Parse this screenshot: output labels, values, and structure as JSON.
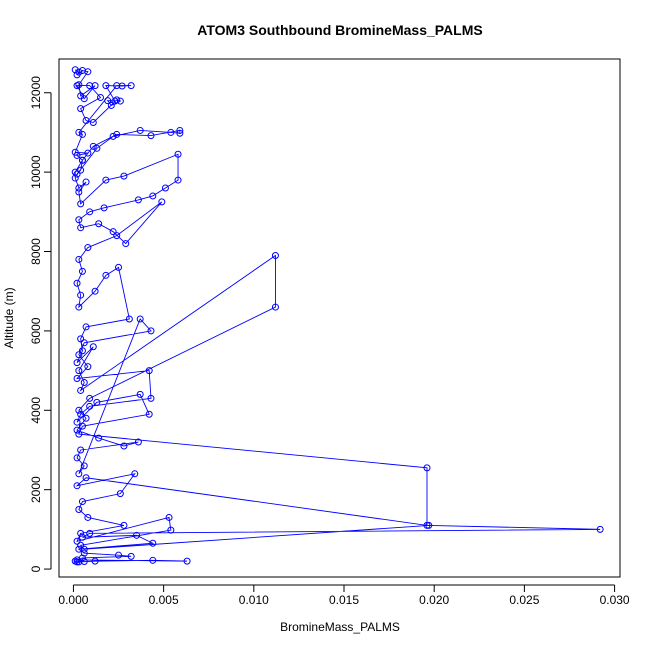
{
  "chart_data": {
    "type": "line",
    "title": "ATOM3 Southbound BromineMass_PALMS",
    "xlabel": "BromineMass_PALMS",
    "ylabel": "Altitude (m)",
    "xlim": [
      -0.0008,
      0.0303
    ],
    "ylim": [
      -200,
      12850
    ],
    "x_ticks": [
      0,
      0.005,
      0.01,
      0.015,
      0.02,
      0.025,
      0.03
    ],
    "x_tick_labels": [
      "0.000",
      "0.005",
      "0.010",
      "0.015",
      "0.020",
      "0.025",
      "0.030"
    ],
    "y_ticks": [
      0,
      2000,
      4000,
      6000,
      8000,
      10000,
      12000
    ],
    "y_tick_labels": [
      "0",
      "2000",
      "4000",
      "6000",
      "8000",
      "10000",
      "12000"
    ],
    "grid": false,
    "legend": "none",
    "series_color": "#0000ff",
    "marker": "open-circle",
    "series": [
      {
        "x": [
          0.0001,
          0.0003,
          0.0002,
          0.0005,
          0.0008,
          0.0003,
          0.0004,
          0.0012,
          0.0006,
          0.0002,
          0.0009,
          0.0015,
          0.0004,
          0.0007,
          0.0011,
          0.0024,
          0.0026,
          0.0021,
          0.0019,
          0.0023,
          0.0018,
          0.0027,
          0.0032,
          0.0024,
          0.0003,
          0.0005,
          0.0001,
          0.0008,
          0.0002,
          0.0005,
          0.0004,
          0.0002,
          0.0013,
          0.0022,
          0.0037,
          0.0054,
          0.0059,
          0.0059,
          0.0043,
          0.0024,
          0.0011,
          0.0005,
          0.0001,
          0.0001,
          0.0003,
          0.0007,
          0.0003,
          0.0004,
          0.0018,
          0.0028,
          0.0058,
          0.0058,
          0.0051,
          0.0044,
          0.0036,
          0.0017,
          0.0009,
          0.0003,
          0.0004,
          0.0014,
          0.0022,
          0.0029,
          0.0049,
          0.0024,
          0.0008,
          0.0003,
          0.0005,
          0.0002,
          0.0004,
          0.0003,
          0.0012,
          0.0018,
          0.0025,
          0.0031,
          0.0007,
          0.0004,
          0.0005,
          0.0002,
          0.0011,
          0.0003,
          0.0006,
          0.0004,
          0.0112,
          0.0112,
          0.0009,
          0.0003,
          0.0007,
          0.0002,
          0.0014,
          0.0028,
          0.0036,
          0.0004,
          0.0002,
          0.0006,
          0.0003,
          0.0037,
          0.0043,
          0.0006,
          0.0003,
          0.0008,
          0.0002,
          0.0042,
          0.0043,
          0.0009,
          0.0004,
          0.0002,
          0.0013,
          0.0037,
          0.0042,
          0.0005,
          0.0003,
          0.0196,
          0.0196,
          0.0007,
          0.0002,
          0.0034,
          0.0026,
          0.0005,
          0.0003,
          0.0008,
          0.0028,
          0.0004,
          0.0002,
          0.0053,
          0.0054,
          0.0004,
          0.0006,
          0.0197,
          0.0292,
          0.0009,
          0.0005,
          0.0035,
          0.0044,
          0.0003,
          0.0006,
          0.0025,
          0.0032,
          0.0005,
          0.0002,
          0.0063,
          0.0044,
          0.0012,
          0.0003,
          0.0006,
          0.0001,
          0.0002
        ],
        "y": [
          12580,
          12520,
          12450,
          12560,
          12530,
          12200,
          11920,
          12180,
          11850,
          12180,
          12180,
          11880,
          11600,
          11300,
          11250,
          11820,
          11790,
          11680,
          11800,
          11790,
          12180,
          12170,
          12180,
          12180,
          11000,
          10950,
          10500,
          10480,
          10420,
          10300,
          10050,
          9950,
          10600,
          10900,
          11050,
          11000,
          10980,
          11050,
          10920,
          10950,
          10650,
          10300,
          10000,
          9850,
          9600,
          9750,
          9500,
          9200,
          9800,
          9900,
          10450,
          9800,
          9600,
          9400,
          9300,
          9100,
          9000,
          8800,
          8600,
          8700,
          8500,
          8200,
          9250,
          8400,
          8100,
          7800,
          7500,
          7200,
          6900,
          6600,
          7000,
          7400,
          7600,
          6300,
          6100,
          5800,
          5500,
          5200,
          5600,
          5000,
          4700,
          4500,
          7900,
          6600,
          4300,
          4000,
          3800,
          3500,
          3300,
          3100,
          3200,
          3000,
          2800,
          2600,
          2400,
          6300,
          6000,
          5700,
          5400,
          5100,
          4800,
          5000,
          4300,
          4100,
          3900,
          3700,
          4200,
          4400,
          3900,
          3600,
          3400,
          2550,
          1100,
          2300,
          2100,
          2400,
          1900,
          1700,
          1500,
          1300,
          1100,
          900,
          700,
          1300,
          980,
          600,
          500,
          1100,
          1000,
          900,
          800,
          850,
          650,
          500,
          400,
          350,
          320,
          280,
          230,
          200,
          220,
          200,
          180,
          190,
          200,
          180
        ]
      }
    ]
  }
}
